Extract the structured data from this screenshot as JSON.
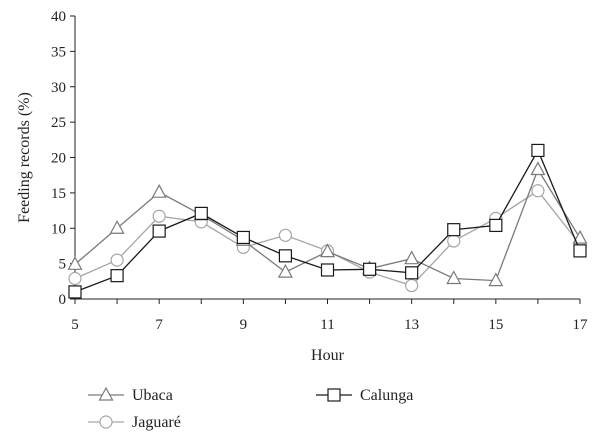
{
  "chart_data": {
    "type": "line",
    "xlabel": "Hour",
    "ylabel": "Feeding records (%)",
    "xlim": [
      5,
      17
    ],
    "ylim": [
      0,
      40
    ],
    "x_ticks": [
      "5",
      "7",
      "9",
      "11",
      "13",
      "15",
      "17"
    ],
    "y_ticks": [
      "0",
      "5",
      "10",
      "15",
      "20",
      "25",
      "30",
      "35",
      "40"
    ],
    "x": [
      5,
      6,
      7,
      8,
      9,
      10,
      11,
      12,
      13,
      14,
      15,
      16,
      17
    ],
    "grid": false,
    "legend_position": "bottom",
    "series": [
      {
        "name": "Ubaca",
        "marker": "triangle",
        "color": "#7a7a7a",
        "values": [
          4.9,
          10.0,
          15.1,
          11.9,
          8.3,
          3.8,
          6.7,
          4.3,
          5.7,
          2.9,
          2.6,
          18.3,
          8.6
        ]
      },
      {
        "name": "Jaguaré",
        "marker": "circle",
        "color": "#a6a6a6",
        "values": [
          2.9,
          5.5,
          11.7,
          10.9,
          7.3,
          9.0,
          6.8,
          3.8,
          1.9,
          8.2,
          11.4,
          15.3,
          7.7
        ]
      },
      {
        "name": "Calunga",
        "marker": "square",
        "color": "#1a1a1a",
        "values": [
          1.0,
          3.3,
          9.6,
          12.1,
          8.7,
          6.1,
          4.1,
          4.2,
          3.7,
          9.8,
          10.4,
          21.0,
          6.8
        ]
      }
    ]
  }
}
